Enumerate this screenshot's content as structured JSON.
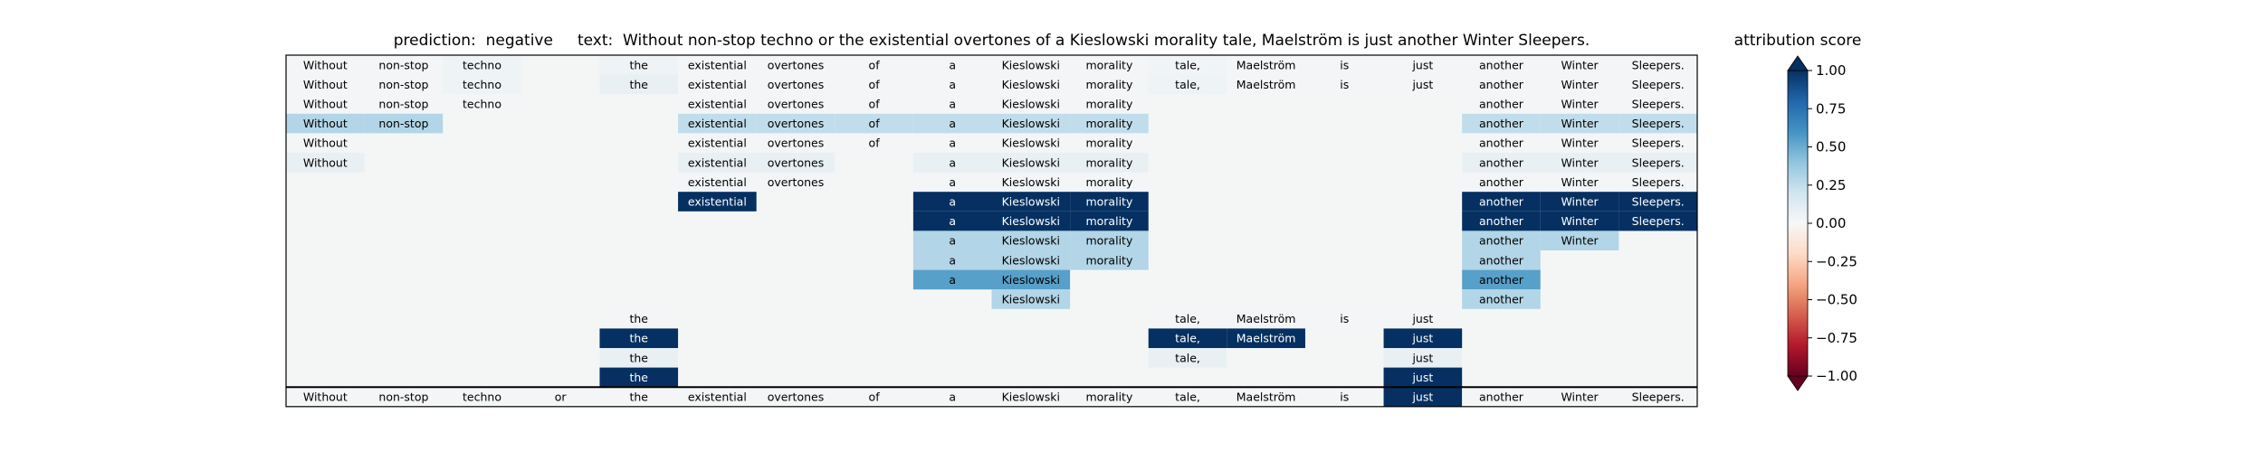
{
  "title": "prediction:  negative     text:  Without non-stop techno or the existential overtones of a Kieslowski morality tale, Maelström is just another Winter Sleepers.",
  "colorbar": {
    "title": "attribution score",
    "ticks": [
      "1.00",
      "0.75",
      "0.50",
      "0.25",
      "0.00",
      "−0.25",
      "−0.50",
      "−0.75",
      "−1.00"
    ]
  },
  "chart_data": {
    "type": "heatmap",
    "words": [
      "Without",
      "non-stop",
      "techno",
      "or",
      "the",
      "existential",
      "overtones",
      "of",
      "a",
      "Kieslowski",
      "morality",
      "tale,",
      "Maelström",
      "is",
      "just",
      "another",
      "Winter",
      "Sleepers."
    ],
    "vmin": -1,
    "vmax": 1,
    "rows": [
      [
        0.02,
        0.02,
        0.05,
        null,
        0.05,
        0.02,
        0.02,
        0.02,
        0.02,
        0.02,
        0.02,
        0.03,
        0.02,
        0.02,
        0.02,
        0.02,
        0.02,
        0.02
      ],
      [
        0.02,
        0.02,
        0.05,
        null,
        0.08,
        0.02,
        0.02,
        0.02,
        0.02,
        0.02,
        0.02,
        0.05,
        0.02,
        0.02,
        0.02,
        0.02,
        0.02,
        0.02
      ],
      [
        0.02,
        0.02,
        0.02,
        null,
        null,
        0.02,
        0.02,
        0.02,
        0.02,
        0.02,
        0.02,
        null,
        null,
        null,
        null,
        0.02,
        0.02,
        0.02
      ],
      [
        0.3,
        0.3,
        null,
        null,
        null,
        0.25,
        0.25,
        0.25,
        0.25,
        0.25,
        0.25,
        null,
        null,
        null,
        null,
        0.25,
        0.25,
        0.25
      ],
      [
        0.02,
        null,
        null,
        null,
        null,
        0.02,
        0.02,
        0.02,
        0.02,
        0.02,
        0.02,
        null,
        null,
        null,
        null,
        0.02,
        0.02,
        0.02
      ],
      [
        0.08,
        null,
        null,
        null,
        null,
        0.08,
        0.08,
        null,
        0.08,
        0.08,
        0.08,
        null,
        null,
        null,
        null,
        0.08,
        0.08,
        0.08
      ],
      [
        null,
        null,
        null,
        null,
        null,
        0.02,
        0.02,
        null,
        0.02,
        0.02,
        0.02,
        null,
        null,
        null,
        null,
        0.02,
        0.02,
        0.02
      ],
      [
        null,
        null,
        null,
        null,
        null,
        1.0,
        null,
        null,
        1.0,
        1.0,
        1.0,
        null,
        null,
        null,
        null,
        1.0,
        1.0,
        1.0
      ],
      [
        null,
        null,
        null,
        null,
        null,
        null,
        null,
        null,
        1.0,
        1.0,
        1.0,
        null,
        null,
        null,
        null,
        1.0,
        1.0,
        1.0
      ],
      [
        null,
        null,
        null,
        null,
        null,
        null,
        null,
        null,
        0.3,
        0.3,
        0.3,
        null,
        null,
        null,
        null,
        0.3,
        0.3,
        null
      ],
      [
        null,
        null,
        null,
        null,
        null,
        null,
        null,
        null,
        0.3,
        0.3,
        0.3,
        null,
        null,
        null,
        null,
        0.3,
        null,
        null
      ],
      [
        null,
        null,
        null,
        null,
        null,
        null,
        null,
        null,
        0.55,
        0.55,
        null,
        null,
        null,
        null,
        null,
        0.55,
        null,
        null
      ],
      [
        null,
        null,
        null,
        null,
        null,
        null,
        null,
        null,
        null,
        0.3,
        null,
        null,
        null,
        null,
        null,
        0.3,
        null,
        null
      ],
      [
        null,
        null,
        null,
        null,
        0.02,
        null,
        null,
        null,
        null,
        null,
        null,
        0.02,
        0.02,
        0.02,
        0.02,
        null,
        null,
        null
      ],
      [
        null,
        null,
        null,
        null,
        1.0,
        null,
        null,
        null,
        null,
        null,
        null,
        1.0,
        1.0,
        null,
        1.0,
        null,
        null,
        null
      ],
      [
        null,
        null,
        null,
        null,
        0.08,
        null,
        null,
        null,
        null,
        null,
        null,
        0.08,
        null,
        null,
        0.08,
        null,
        null,
        null
      ],
      [
        null,
        null,
        null,
        null,
        1.0,
        null,
        null,
        null,
        null,
        null,
        null,
        null,
        null,
        null,
        1.0,
        null,
        null,
        null
      ]
    ],
    "bottom_row": [
      0.02,
      0.02,
      0.02,
      0.02,
      0.02,
      0.02,
      0.02,
      0.02,
      0.02,
      0.02,
      0.02,
      0.02,
      0.02,
      0.02,
      1.0,
      0.02,
      0.02,
      0.02
    ],
    "colormap": "RdBu",
    "colormap_stops": [
      "#67001f",
      "#b2182b",
      "#d6604d",
      "#f4a582",
      "#fddbc7",
      "#f7f7f7",
      "#d1e5f0",
      "#92c5de",
      "#4393c3",
      "#2166ac",
      "#053061"
    ],
    "background_color": "#f4f6f6"
  }
}
